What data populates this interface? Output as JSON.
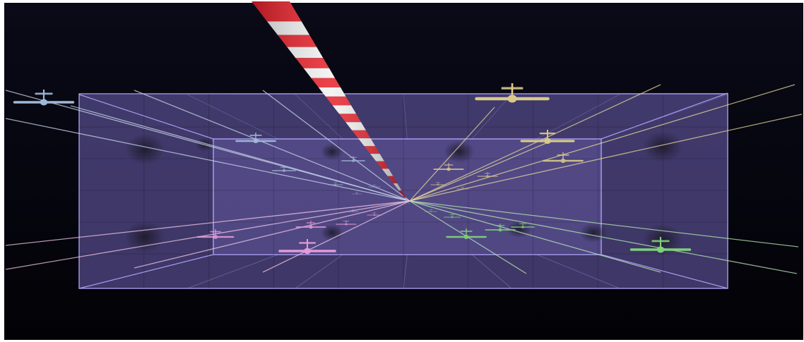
{
  "scene": {
    "background_color": "#05050d",
    "frame_color": "#ffffff",
    "volume_fill_color": "#8877cc",
    "volume_edge_color": "#a79bf0",
    "pole_colors": [
      "#e8202a",
      "#f2f2f2"
    ],
    "aircraft_groups": [
      {
        "quadrant": "upper-left",
        "color": "#9fb8d8",
        "ray_color": "#c9d6ea"
      },
      {
        "quadrant": "upper-right",
        "color": "#d9c98a",
        "ray_color": "#e6d79a"
      },
      {
        "quadrant": "lower-left",
        "color": "#e39ad6",
        "ray_color": "#f0c6e8"
      },
      {
        "quadrant": "lower-right",
        "color": "#7fd07a",
        "ray_color": "#b8e8b4"
      }
    ],
    "icons": [
      "airplane-icon",
      "striped-pole-icon"
    ]
  }
}
